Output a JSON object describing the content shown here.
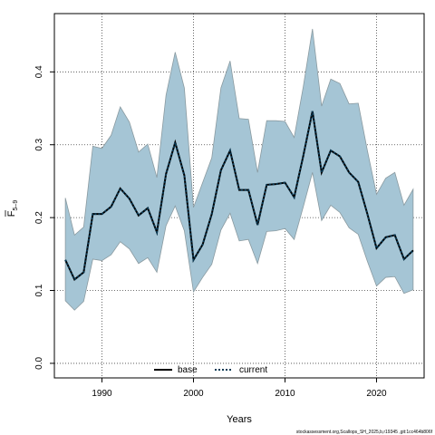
{
  "chart_data": {
    "type": "line",
    "xlabel": "Years",
    "ylabel_main": "F",
    "ylabel_sub": "5–9",
    "xlim": [
      1984.8,
      2025.2
    ],
    "ylim": [
      -0.02,
      0.48
    ],
    "xticks": [
      1990,
      2000,
      2010,
      2020
    ],
    "yticks": [
      0.0,
      0.1,
      0.2,
      0.3,
      0.4
    ],
    "ytick_labels": [
      "0.0",
      "0.1",
      "0.2",
      "0.3",
      "0.4"
    ],
    "grid": true,
    "legend_position": "bottom-center",
    "x": [
      1986,
      1987,
      1988,
      1989,
      1990,
      1991,
      1992,
      1993,
      1994,
      1995,
      1996,
      1997,
      1998,
      1999,
      2000,
      2001,
      2002,
      2003,
      2004,
      2005,
      2006,
      2007,
      2008,
      2009,
      2010,
      2011,
      2012,
      2013,
      2014,
      2015,
      2016,
      2017,
      2018,
      2019,
      2020,
      2021,
      2022,
      2023,
      2024
    ],
    "series": [
      {
        "name": "base",
        "color": "#000000",
        "values": [
          0.142,
          0.115,
          0.125,
          0.205,
          0.205,
          0.215,
          0.24,
          0.226,
          0.203,
          0.213,
          0.18,
          0.26,
          0.303,
          0.258,
          0.142,
          0.163,
          0.205,
          0.265,
          0.292,
          0.238,
          0.238,
          0.19,
          0.245,
          0.246,
          0.248,
          0.228,
          0.285,
          0.346,
          0.262,
          0.292,
          0.284,
          0.262,
          0.249,
          0.205,
          0.158,
          0.173,
          0.176,
          0.143,
          0.155
        ]
      },
      {
        "name": "current",
        "color": "#0a3a55",
        "values": [
          0.142,
          0.115,
          0.125,
          0.205,
          0.205,
          0.215,
          0.24,
          0.226,
          0.203,
          0.213,
          0.18,
          0.26,
          0.303,
          0.258,
          0.142,
          0.163,
          0.205,
          0.265,
          0.292,
          0.238,
          0.238,
          0.19,
          0.245,
          0.246,
          0.248,
          0.228,
          0.285,
          0.346,
          0.262,
          0.292,
          0.284,
          0.262,
          0.249,
          0.205,
          0.158,
          0.173,
          0.176,
          0.143,
          0.155
        ]
      }
    ],
    "band": {
      "fill": "#a5c5d5",
      "stroke": "#8a9aa0",
      "upper": [
        0.227,
        0.176,
        0.187,
        0.298,
        0.295,
        0.313,
        0.352,
        0.331,
        0.29,
        0.301,
        0.255,
        0.368,
        0.427,
        0.378,
        0.214,
        0.248,
        0.282,
        0.378,
        0.415,
        0.336,
        0.335,
        0.262,
        0.333,
        0.333,
        0.332,
        0.31,
        0.38,
        0.459,
        0.353,
        0.39,
        0.384,
        0.356,
        0.357,
        0.292,
        0.232,
        0.254,
        0.262,
        0.217,
        0.239
      ],
      "lower": [
        0.086,
        0.073,
        0.085,
        0.143,
        0.141,
        0.149,
        0.167,
        0.157,
        0.137,
        0.145,
        0.125,
        0.189,
        0.216,
        0.182,
        0.098,
        0.118,
        0.136,
        0.183,
        0.206,
        0.168,
        0.17,
        0.137,
        0.181,
        0.182,
        0.185,
        0.17,
        0.215,
        0.262,
        0.196,
        0.217,
        0.207,
        0.186,
        0.177,
        0.14,
        0.106,
        0.118,
        0.119,
        0.096,
        0.101
      ]
    }
  },
  "legend": {
    "items": [
      {
        "label": "base",
        "color": "#000000",
        "style": "solid"
      },
      {
        "label": "current",
        "color": "#0a3a55",
        "style": "dotted"
      }
    ]
  },
  "footnote": "stockassessment.org,Scallops_SH_2025,b,r19345 ,git:1cc464b806f"
}
